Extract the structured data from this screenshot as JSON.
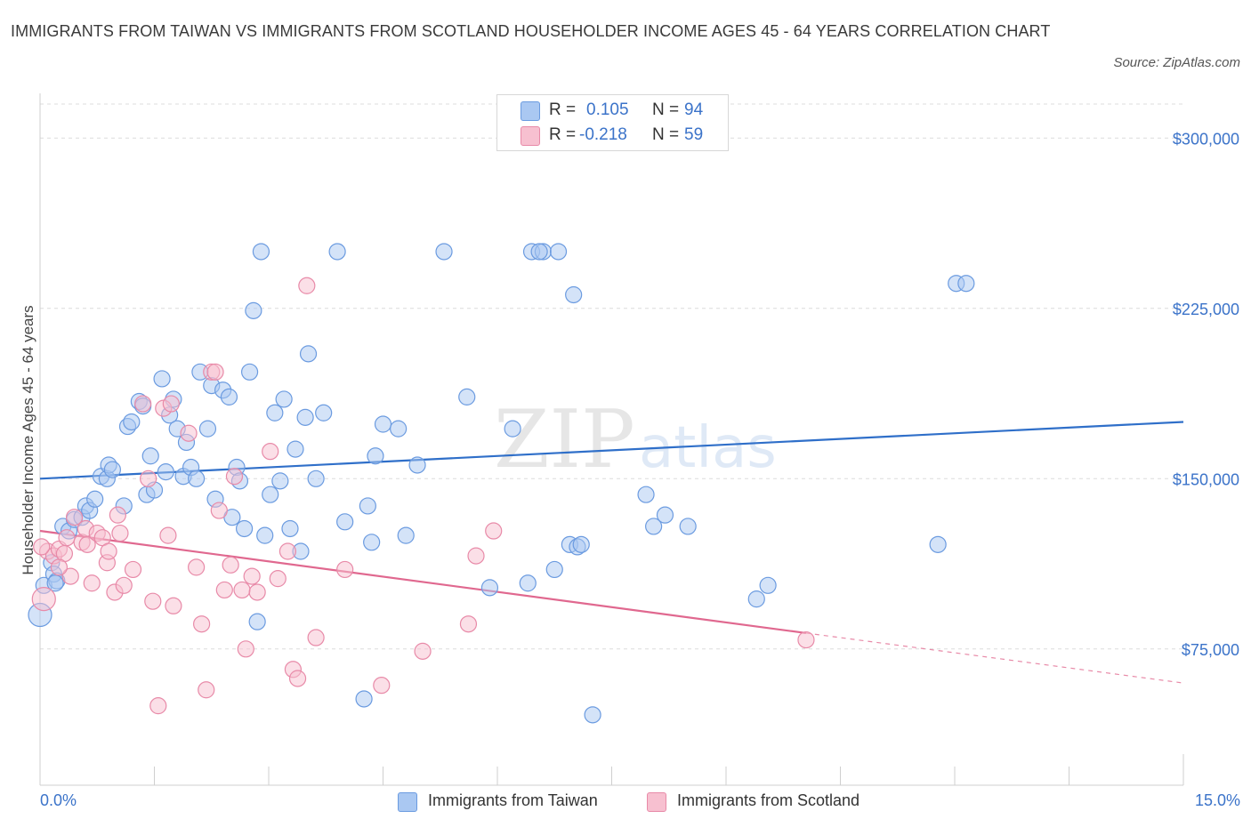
{
  "title": "IMMIGRANTS FROM TAIWAN VS IMMIGRANTS FROM SCOTLAND HOUSEHOLDER INCOME AGES 45 - 64 YEARS CORRELATION CHART",
  "source": "Source: ZipAtlas.com",
  "watermark": {
    "zip": "ZIP",
    "atlas": "atlas"
  },
  "legend": {
    "rows": [
      {
        "r_label": "R =",
        "r_value": "0.105",
        "n_label": "N =",
        "n_value": "94",
        "color": "#aac8f2",
        "stroke": "#6b9be0"
      },
      {
        "r_label": "R =",
        "r_value": "-0.218",
        "n_label": "N =",
        "n_value": "59",
        "color": "#f7c0d0",
        "stroke": "#e88aa8"
      }
    ]
  },
  "bottom_legend": [
    {
      "label": "Immigrants from Taiwan",
      "color": "#aac8f2",
      "stroke": "#6b9be0"
    },
    {
      "label": "Immigrants from Scotland",
      "color": "#f7c0d0",
      "stroke": "#e88aa8"
    }
  ],
  "chart_data": {
    "type": "scatter",
    "title": "IMMIGRANTS FROM TAIWAN VS IMMIGRANTS FROM SCOTLAND HOUSEHOLDER INCOME AGES 45 - 64 YEARS CORRELATION CHART",
    "xlabel": "",
    "ylabel": "Householder Income Ages 45 - 64 years",
    "xlim": [
      0,
      15
    ],
    "ylim": [
      15000,
      315000
    ],
    "x_tick_labels": [
      "0.0%",
      "15.0%"
    ],
    "y_ticks": [
      75000,
      150000,
      225000,
      300000
    ],
    "y_tick_labels": [
      "$75,000",
      "$150,000",
      "$225,000",
      "$300,000"
    ],
    "grid": "horizontal dashed",
    "legend_position": "top-center",
    "series": [
      {
        "name": "Immigrants from Taiwan",
        "color": "#6b9be0",
        "fill": "#aac8f2",
        "trend": {
          "x": [
            0,
            15
          ],
          "y": [
            150000,
            175000
          ]
        },
        "points": [
          [
            0.0,
            90000
          ],
          [
            0.05,
            103000
          ],
          [
            0.15,
            113000
          ],
          [
            0.18,
            108000
          ],
          [
            0.22,
            105000
          ],
          [
            0.3,
            129000
          ],
          [
            0.38,
            127000
          ],
          [
            0.45,
            132000
          ],
          [
            0.55,
            133000
          ],
          [
            0.6,
            138000
          ],
          [
            0.65,
            136000
          ],
          [
            0.72,
            141000
          ],
          [
            0.8,
            151000
          ],
          [
            0.88,
            150000
          ],
          [
            0.9,
            156000
          ],
          [
            0.95,
            154000
          ],
          [
            1.1,
            138000
          ],
          [
            1.15,
            173000
          ],
          [
            1.2,
            175000
          ],
          [
            1.3,
            184000
          ],
          [
            1.35,
            182000
          ],
          [
            1.4,
            143000
          ],
          [
            1.45,
            160000
          ],
          [
            1.5,
            145000
          ],
          [
            1.6,
            194000
          ],
          [
            1.65,
            153000
          ],
          [
            1.7,
            178000
          ],
          [
            1.75,
            185000
          ],
          [
            1.8,
            172000
          ],
          [
            1.88,
            151000
          ],
          [
            1.92,
            166000
          ],
          [
            1.98,
            155000
          ],
          [
            2.05,
            150000
          ],
          [
            2.1,
            197000
          ],
          [
            2.2,
            172000
          ],
          [
            2.25,
            191000
          ],
          [
            2.3,
            141000
          ],
          [
            2.4,
            189000
          ],
          [
            2.48,
            186000
          ],
          [
            2.52,
            133000
          ],
          [
            2.58,
            155000
          ],
          [
            2.62,
            149000
          ],
          [
            2.68,
            128000
          ],
          [
            2.75,
            197000
          ],
          [
            2.8,
            224000
          ],
          [
            2.85,
            87000
          ],
          [
            2.9,
            250000
          ],
          [
            2.95,
            125000
          ],
          [
            3.02,
            143000
          ],
          [
            3.08,
            179000
          ],
          [
            3.15,
            149000
          ],
          [
            3.2,
            185000
          ],
          [
            3.28,
            128000
          ],
          [
            3.35,
            163000
          ],
          [
            3.42,
            118000
          ],
          [
            3.48,
            177000
          ],
          [
            3.52,
            205000
          ],
          [
            3.62,
            150000
          ],
          [
            3.72,
            179000
          ],
          [
            3.9,
            250000
          ],
          [
            4.0,
            131000
          ],
          [
            4.25,
            53000
          ],
          [
            4.3,
            138000
          ],
          [
            4.35,
            122000
          ],
          [
            4.4,
            160000
          ],
          [
            4.5,
            174000
          ],
          [
            4.7,
            172000
          ],
          [
            4.8,
            125000
          ],
          [
            4.95,
            156000
          ],
          [
            5.3,
            250000
          ],
          [
            5.6,
            186000
          ],
          [
            5.9,
            102000
          ],
          [
            6.2,
            172000
          ],
          [
            6.4,
            104000
          ],
          [
            6.45,
            250000
          ],
          [
            6.6,
            250000
          ],
          [
            6.55,
            250000
          ],
          [
            6.8,
            250000
          ],
          [
            6.75,
            110000
          ],
          [
            6.95,
            121000
          ],
          [
            7.05,
            120000
          ],
          [
            7.0,
            231000
          ],
          [
            7.1,
            121000
          ],
          [
            7.25,
            46000
          ],
          [
            7.95,
            143000
          ],
          [
            8.05,
            129000
          ],
          [
            8.2,
            134000
          ],
          [
            8.5,
            129000
          ],
          [
            9.4,
            97000
          ],
          [
            9.55,
            103000
          ],
          [
            11.78,
            121000
          ],
          [
            12.02,
            236000
          ],
          [
            12.15,
            236000
          ],
          [
            0.2,
            104000
          ]
        ]
      },
      {
        "name": "Immigrants from Scotland",
        "color": "#e88aa8",
        "fill": "#f7c0d0",
        "trend": {
          "x": [
            0,
            10.05
          ],
          "y": [
            127000,
            82000
          ]
        },
        "trend_dashed": {
          "x": [
            10.05,
            15
          ],
          "y": [
            82000,
            60000
          ]
        },
        "points": [
          [
            0.05,
            97000
          ],
          [
            0.1,
            118000
          ],
          [
            0.18,
            116000
          ],
          [
            0.25,
            119000
          ],
          [
            0.32,
            117000
          ],
          [
            0.35,
            124000
          ],
          [
            0.4,
            107000
          ],
          [
            0.45,
            133000
          ],
          [
            0.55,
            122000
          ],
          [
            0.6,
            128000
          ],
          [
            0.62,
            121000
          ],
          [
            0.68,
            104000
          ],
          [
            0.75,
            126000
          ],
          [
            0.82,
            124000
          ],
          [
            0.88,
            113000
          ],
          [
            0.9,
            118000
          ],
          [
            0.98,
            100000
          ],
          [
            1.02,
            134000
          ],
          [
            1.05,
            126000
          ],
          [
            1.1,
            103000
          ],
          [
            1.22,
            110000
          ],
          [
            1.35,
            183000
          ],
          [
            1.42,
            150000
          ],
          [
            1.48,
            96000
          ],
          [
            1.55,
            50000
          ],
          [
            1.62,
            181000
          ],
          [
            1.68,
            125000
          ],
          [
            1.72,
            183000
          ],
          [
            1.75,
            94000
          ],
          [
            1.95,
            170000
          ],
          [
            2.05,
            111000
          ],
          [
            2.12,
            86000
          ],
          [
            2.18,
            57000
          ],
          [
            2.25,
            197000
          ],
          [
            2.3,
            197000
          ],
          [
            2.35,
            136000
          ],
          [
            2.42,
            101000
          ],
          [
            2.5,
            112000
          ],
          [
            2.55,
            151000
          ],
          [
            2.65,
            101000
          ],
          [
            2.7,
            75000
          ],
          [
            2.78,
            107000
          ],
          [
            2.85,
            100000
          ],
          [
            3.02,
            162000
          ],
          [
            3.12,
            106000
          ],
          [
            3.25,
            118000
          ],
          [
            3.32,
            66000
          ],
          [
            3.38,
            62000
          ],
          [
            3.5,
            235000
          ],
          [
            3.62,
            80000
          ],
          [
            4.0,
            110000
          ],
          [
            4.48,
            59000
          ],
          [
            5.02,
            74000
          ],
          [
            5.62,
            86000
          ],
          [
            5.72,
            116000
          ],
          [
            5.95,
            127000
          ],
          [
            0.02,
            120000
          ],
          [
            10.05,
            79000
          ],
          [
            0.25,
            111000
          ]
        ]
      }
    ]
  }
}
